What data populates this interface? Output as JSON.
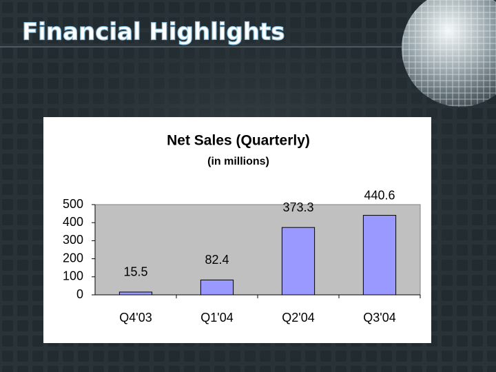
{
  "slide": {
    "title": "Financial Highlights"
  },
  "chart_data": {
    "type": "bar",
    "title": "Net Sales (Quarterly)",
    "subtitle": "(in millions)",
    "categories": [
      "Q4'03",
      "Q1'04",
      "Q2'04",
      "Q3'04"
    ],
    "values": [
      15.5,
      82.4,
      373.3,
      440.6
    ],
    "color": "#9999ff",
    "ylim": [
      0,
      500
    ],
    "yticks": [
      0,
      100,
      200,
      300,
      400,
      500
    ],
    "grid": false
  }
}
